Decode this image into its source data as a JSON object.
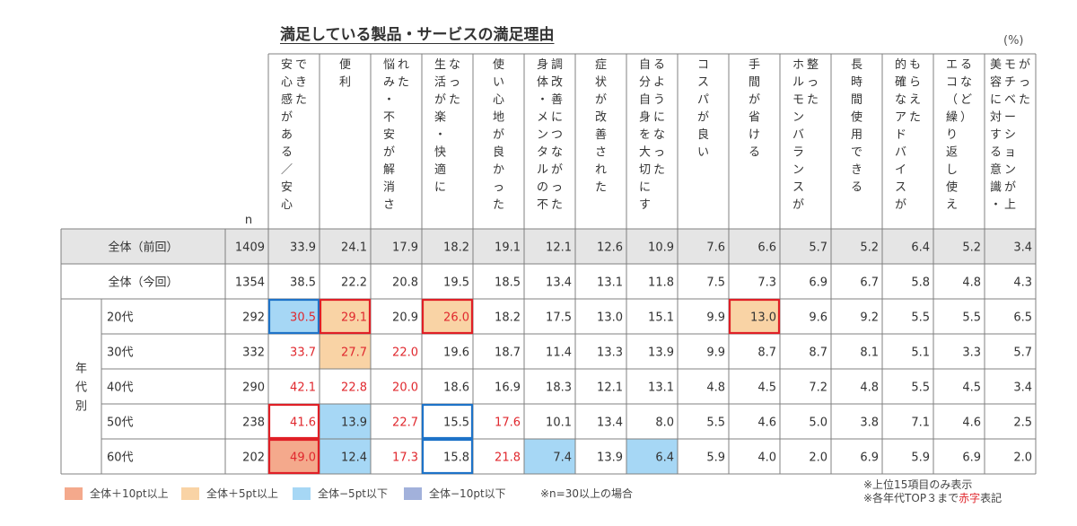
{
  "title": "満足している製品・サービスの満足理由",
  "unit": "(%)",
  "n_label": "n",
  "colors": {
    "plus10": "#f4a98c",
    "plus5": "#f9d3a5",
    "minus5": "#a6d7f5",
    "minus10": "#a2b1db",
    "top3_text": "#e0282e",
    "top3_border": "#e01f26",
    "bottom_border": "#1e73c8",
    "prev_row_bg": "#e5e5e5"
  },
  "chart_data": {
    "type": "table",
    "columns": [
      "できた安心感がある／安心",
      "便利",
      "れた悩み・不安が解消さ",
      "なった生活が楽・快適に",
      "使い心地が良かった",
      "調改善につながった身体・メンタルの不",
      "症状が改善された",
      "るようになった自分自身を大切にす",
      "コスパが良い",
      "手間が省ける",
      "整ったホルモンバランスが",
      "長時間使用できる",
      "もらえた的確なアドバイスが",
      "るなど）エコ（繰り返し使え",
      "がったモチベーションが上美容に対する意識・"
    ],
    "column_lines": [
      [
        "できた",
        "安心感がある／安心"
      ],
      [
        "便利"
      ],
      [
        "れた",
        "悩み・不安が解消さ"
      ],
      [
        "なった",
        "生活が楽・快適に"
      ],
      [
        "使い心地が良かった"
      ],
      [
        "調改善につながった",
        "身体・メンタルの不"
      ],
      [
        "症状が改善された"
      ],
      [
        "るようになった",
        "自分自身を大切にす"
      ],
      [
        "コスパが良い"
      ],
      [
        "手間が省ける"
      ],
      [
        "整った",
        "ホルモンバランスが"
      ],
      [
        "長時間使用できる"
      ],
      [
        "もらえた",
        "的確なアドバイスが"
      ],
      [
        "るなど）",
        "エコ（繰り返し使え"
      ],
      [
        "がった",
        "モチベーションが上",
        "美容に対する意識・"
      ]
    ],
    "group_label": "年代別",
    "rows": [
      {
        "label": "全体（前回）",
        "n": 1409,
        "values": [
          33.9,
          24.1,
          17.9,
          18.2,
          19.1,
          12.1,
          12.6,
          10.9,
          7.6,
          6.6,
          5.7,
          5.2,
          6.4,
          5.2,
          3.4
        ],
        "fills": [
          "",
          "",
          "",
          "",
          "",
          "",
          "",
          "",
          "",
          "",
          "",
          "",
          "",
          "",
          ""
        ],
        "red_text": [
          false,
          false,
          false,
          false,
          false,
          false,
          false,
          false,
          false,
          false,
          false,
          false,
          false,
          false,
          false
        ],
        "boxes": [
          "",
          "",
          "",
          "",
          "",
          "",
          "",
          "",
          "",
          "",
          "",
          "",
          "",
          "",
          ""
        ]
      },
      {
        "label": "全体（今回）",
        "n": 1354,
        "values": [
          38.5,
          22.2,
          20.8,
          19.5,
          18.5,
          13.4,
          13.1,
          11.8,
          7.5,
          7.3,
          6.9,
          6.7,
          5.8,
          4.8,
          4.3
        ],
        "fills": [
          "",
          "",
          "",
          "",
          "",
          "",
          "",
          "",
          "",
          "",
          "",
          "",
          "",
          "",
          ""
        ],
        "red_text": [
          false,
          false,
          false,
          false,
          false,
          false,
          false,
          false,
          false,
          false,
          false,
          false,
          false,
          false,
          false
        ],
        "boxes": [
          "",
          "",
          "",
          "",
          "",
          "",
          "",
          "",
          "",
          "",
          "",
          "",
          "",
          "",
          ""
        ]
      },
      {
        "label": "20代",
        "n": 292,
        "values": [
          30.5,
          29.1,
          20.9,
          26.0,
          18.2,
          17.5,
          13.0,
          15.1,
          9.9,
          13.0,
          9.6,
          9.2,
          5.5,
          5.5,
          6.5
        ],
        "fills": [
          "minus5",
          "plus5",
          "",
          "plus5",
          "",
          "",
          "",
          "",
          "",
          "plus5",
          "",
          "",
          "",
          "",
          ""
        ],
        "red_text": [
          true,
          true,
          false,
          true,
          false,
          false,
          false,
          false,
          false,
          false,
          false,
          false,
          false,
          false,
          false
        ],
        "boxes": [
          "blue",
          "red",
          "",
          "red",
          "",
          "",
          "",
          "",
          "",
          "red",
          "",
          "",
          "",
          "",
          ""
        ]
      },
      {
        "label": "30代",
        "n": 332,
        "values": [
          33.7,
          27.7,
          22.0,
          19.6,
          18.7,
          11.4,
          13.3,
          13.9,
          9.9,
          8.7,
          8.7,
          8.1,
          5.1,
          3.3,
          5.7
        ],
        "fills": [
          "",
          "plus5",
          "",
          "",
          "",
          "",
          "",
          "",
          "",
          "",
          "",
          "",
          "",
          "",
          ""
        ],
        "red_text": [
          true,
          true,
          true,
          false,
          false,
          false,
          false,
          false,
          false,
          false,
          false,
          false,
          false,
          false,
          false
        ],
        "boxes": [
          "",
          "",
          "",
          "",
          "",
          "",
          "",
          "",
          "",
          "",
          "",
          "",
          "",
          "",
          ""
        ]
      },
      {
        "label": "40代",
        "n": 290,
        "values": [
          42.1,
          22.8,
          20.0,
          18.6,
          16.9,
          18.3,
          12.1,
          13.1,
          4.8,
          4.5,
          7.2,
          4.8,
          5.5,
          4.5,
          3.4
        ],
        "fills": [
          "",
          "",
          "",
          "",
          "",
          "",
          "",
          "",
          "",
          "",
          "",
          "",
          "",
          "",
          ""
        ],
        "red_text": [
          true,
          true,
          true,
          false,
          false,
          false,
          false,
          false,
          false,
          false,
          false,
          false,
          false,
          false,
          false
        ],
        "boxes": [
          "",
          "",
          "",
          "",
          "",
          "",
          "",
          "",
          "",
          "",
          "",
          "",
          "",
          "",
          ""
        ]
      },
      {
        "label": "50代",
        "n": 238,
        "values": [
          41.6,
          13.9,
          22.7,
          15.5,
          17.6,
          10.1,
          13.4,
          8.0,
          5.5,
          4.6,
          5.0,
          3.8,
          7.1,
          4.6,
          2.5
        ],
        "fills": [
          "",
          "minus5",
          "",
          "",
          "",
          "",
          "",
          "",
          "",
          "",
          "",
          "",
          "",
          "",
          ""
        ],
        "red_text": [
          true,
          false,
          true,
          false,
          true,
          false,
          false,
          false,
          false,
          false,
          false,
          false,
          false,
          false,
          false
        ],
        "boxes": [
          "red",
          "",
          "",
          "blue",
          "",
          "",
          "",
          "",
          "",
          "",
          "",
          "",
          "",
          "",
          ""
        ]
      },
      {
        "label": "60代",
        "n": 202,
        "values": [
          49.0,
          12.4,
          17.3,
          15.8,
          21.8,
          7.4,
          13.9,
          6.4,
          5.9,
          4.0,
          2.0,
          6.9,
          5.9,
          6.9,
          2.0
        ],
        "fills": [
          "plus10",
          "minus5",
          "",
          "",
          "",
          "minus5",
          "",
          "minus5",
          "",
          "",
          "",
          "",
          "",
          "",
          ""
        ],
        "red_text": [
          true,
          false,
          true,
          false,
          true,
          false,
          false,
          false,
          false,
          false,
          false,
          false,
          false,
          false,
          false
        ],
        "boxes": [
          "red",
          "",
          "",
          "blue",
          "",
          "",
          "",
          "",
          "",
          "",
          "",
          "",
          "",
          "",
          ""
        ]
      }
    ]
  },
  "legend": [
    {
      "swatch": "plus10",
      "label": "全体＋10pt以上"
    },
    {
      "swatch": "plus5",
      "label": "全体＋5pt以上"
    },
    {
      "swatch": "minus5",
      "label": "全体−5pt以下"
    },
    {
      "swatch": "minus10",
      "label": "全体−10pt以下"
    }
  ],
  "n_note": "※n=30以上の場合",
  "notes": {
    "line1": "※上位15項目のみ表示",
    "line2_pre": "※各年代TOP３まで",
    "line2_red": "赤字",
    "line2_post": "表記"
  }
}
